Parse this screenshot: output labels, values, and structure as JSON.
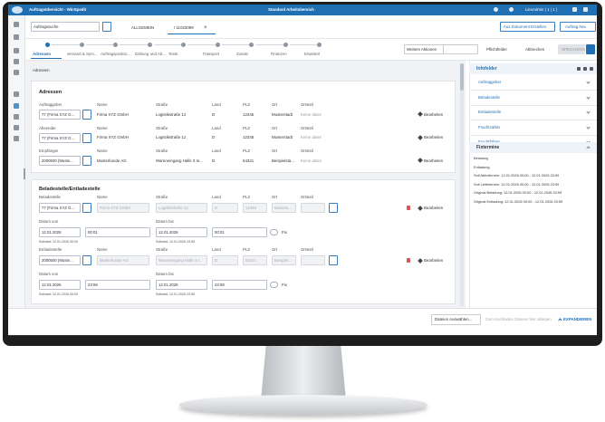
{
  "header": {
    "app_title": "Auftragsübersicht - WinSpedit",
    "workspace": "Standard Arbeitsbereich",
    "user": "LiesAdmin | 1 | 1 |"
  },
  "search": {
    "placeholder": "Auftragssuche",
    "tabs": [
      "ALLGEMEIN",
      "I 11023099"
    ]
  },
  "top_buttons": [
    "Aus Dokument Erstellen",
    "Auftrag Neu"
  ],
  "steps": [
    "Adressen",
    "Versand & Sym...",
    "Auftragspositio...",
    "Zahlung und Ab...",
    "Texte",
    "Transport",
    "Zusatz",
    "Finanzen",
    "Erweitert"
  ],
  "actions": {
    "more": "Weitere Aktionen",
    "required": "Pflichtfelder",
    "cancel": "Abbrechen",
    "save": "SPEICHERN"
  },
  "breadcrumb": "Adressen",
  "addresses": {
    "title": "Adressen",
    "labels": {
      "name": "Name",
      "street": "Straße",
      "country": "Land",
      "zip": "PLZ",
      "city": "Ort",
      "district": "Ortsteil"
    },
    "edit": "Bearbeiten",
    "rows": [
      {
        "role": "Auftraggeber",
        "id": "77 (Firma XYZ G...",
        "name": "Firma XYZ GmbH",
        "street": "Logistikstraße 12",
        "country": "D",
        "zip": "12345",
        "city": "Musterstadt",
        "district": "Keine daten"
      },
      {
        "role": "Absender",
        "id": "77 (Firma XYZ G...",
        "name": "Firma XYZ GmbH",
        "street": "Logistikstraße 12",
        "country": "D",
        "zip": "12345",
        "city": "Musterstadt",
        "district": "Keine daten"
      },
      {
        "role": "Empfänger",
        "id": "2000500 (Muste...",
        "name": "Musterkunde AG",
        "street": "Wareneingang Halle 3 In...",
        "country": "D",
        "zip": "54321",
        "city": "Beispielsta...",
        "district": "Keine daten"
      }
    ]
  },
  "stops": {
    "title": "Beladestelle/Entladestelle",
    "edit": "Bearbeiten",
    "date_from": "Datum von",
    "date_to": "Datum bis",
    "fix": "Fix",
    "items": [
      {
        "role": "Beladestelle",
        "id": "77 (Firma XYZ G...",
        "name": "Firma XYZ GmbH",
        "street": "Logistikstraße 12",
        "country": "D",
        "zip": "12345",
        "city": "Musters...",
        "from_date": "12.01.2026",
        "from_time": "00:01",
        "to_date": "12.01.2026",
        "to_time": "00:01",
        "from_note": "Sollstart: 12.01.2026 00:00",
        "to_note": "Sollstart: 12.01.2026 23:59"
      },
      {
        "role": "Entladestelle",
        "id": "2000500 (Muste...",
        "name": "Musterkunde AG",
        "street": "Wareneingang Halle 3 I...",
        "country": "D",
        "zip": "54321",
        "city": "Beispiel...",
        "from_date": "12.01.2026",
        "from_time": "23:59",
        "to_date": "12.01.2026",
        "to_time": "23:59",
        "from_note": "Sollstart: 12.01.2026 00:00",
        "to_note": "Sollstart: 12.01.2026 23:59"
      }
    ]
  },
  "info": {
    "title": "Infofelder",
    "items": [
      "Auftraggeber",
      "Beladestelle",
      "Entladestelle",
      "Frachtzahler",
      "Frachtführer"
    ],
    "fix_title": "Fixtermine",
    "fix_lines": [
      "Beladung",
      "Entladung",
      "Soll Abholtermin: 12.01.2026 00:00 - 12.01.2026 23:59",
      "Soll Liefertermin: 12.01.2026 00:00 - 12.01.2026 23:59",
      "Original Beladung: 12.01.2026 00:00 - 12.01.2026 23:59",
      "Original Entladung: 12.01.2026 00:00 - 12.01.2026 23:59"
    ]
  },
  "footer": {
    "files": "Dateien Auswählen...",
    "drop": "Zum Hochladen Dateien hier ablegen",
    "expand": "EXPANDIEREN"
  }
}
